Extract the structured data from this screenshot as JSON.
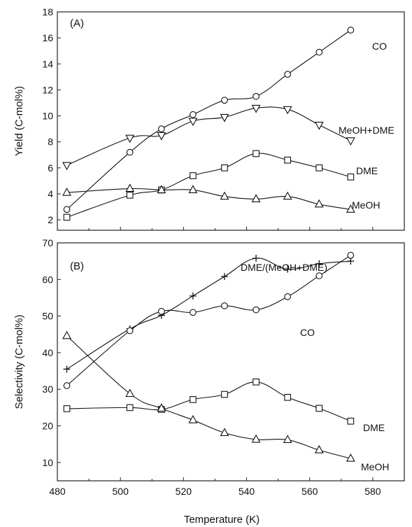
{
  "figure": {
    "xlabel": "Temperature (K)"
  },
  "chart_data": [
    {
      "type": "line",
      "panel_label": "(A)",
      "ylabel": "Yield (C-mol%)",
      "xlim": [
        480,
        590
      ],
      "ylim": [
        1.2,
        18
      ],
      "xticks": [
        480,
        500,
        520,
        540,
        560,
        580
      ],
      "yticks": [
        2,
        4,
        6,
        8,
        10,
        12,
        14,
        16,
        18
      ],
      "x_ticklabels_shown": false,
      "series": [
        {
          "name": "CO",
          "marker": "circle",
          "x": [
            483,
            503,
            513,
            523,
            533,
            543,
            553,
            563,
            573
          ],
          "y": [
            2.8,
            7.2,
            9.0,
            10.1,
            11.2,
            11.5,
            13.2,
            14.9,
            16.6
          ]
        },
        {
          "name": "MeOH+DME",
          "marker": "triangle-down",
          "x": [
            483,
            503,
            513,
            523,
            533,
            543,
            553,
            563,
            573
          ],
          "y": [
            6.2,
            8.3,
            8.5,
            9.6,
            9.9,
            10.6,
            10.5,
            9.3,
            8.1
          ]
        },
        {
          "name": "DME",
          "marker": "square",
          "x": [
            483,
            503,
            513,
            523,
            533,
            543,
            553,
            563,
            573
          ],
          "y": [
            2.2,
            3.9,
            4.3,
            5.4,
            6.0,
            7.1,
            6.6,
            6.0,
            5.3
          ]
        },
        {
          "name": "MeOH",
          "marker": "triangle-up",
          "x": [
            483,
            503,
            513,
            523,
            533,
            543,
            553,
            563,
            573
          ],
          "y": [
            4.1,
            4.4,
            4.3,
            4.3,
            3.8,
            3.6,
            3.8,
            3.2,
            2.8
          ]
        }
      ]
    },
    {
      "type": "line",
      "panel_label": "(B)",
      "ylabel": "Selectivity (C-mol%)",
      "xlim": [
        480,
        590
      ],
      "ylim": [
        5,
        70
      ],
      "xticks": [
        480,
        500,
        520,
        540,
        560,
        580
      ],
      "yticks": [
        10,
        20,
        30,
        40,
        50,
        60,
        70
      ],
      "x_ticklabels_shown": true,
      "series": [
        {
          "name": "DME/(MeOH+DME)",
          "marker": "plus",
          "x": [
            483,
            503,
            513,
            523,
            533,
            543,
            553,
            563,
            573
          ],
          "y": [
            35.5,
            46.5,
            50.2,
            55.5,
            60.8,
            65.8,
            62.8,
            64.3,
            65.0
          ]
        },
        {
          "name": "CO",
          "marker": "circle",
          "x": [
            483,
            503,
            513,
            523,
            533,
            543,
            553,
            563,
            573
          ],
          "y": [
            31.0,
            46.0,
            51.3,
            51.0,
            52.8,
            51.7,
            55.3,
            61.0,
            66.6
          ]
        },
        {
          "name": "DME",
          "marker": "square",
          "x": [
            483,
            503,
            513,
            523,
            533,
            543,
            553,
            563,
            573
          ],
          "y": [
            24.7,
            25.0,
            24.5,
            27.2,
            28.6,
            32.0,
            27.8,
            24.8,
            21.3
          ]
        },
        {
          "name": "MeOH",
          "marker": "triangle-up",
          "x": [
            483,
            503,
            513,
            523,
            533,
            543,
            553,
            563,
            573
          ],
          "y": [
            44.6,
            28.8,
            24.8,
            21.6,
            18.1,
            16.3,
            16.2,
            13.4,
            11.1
          ]
        }
      ]
    }
  ]
}
